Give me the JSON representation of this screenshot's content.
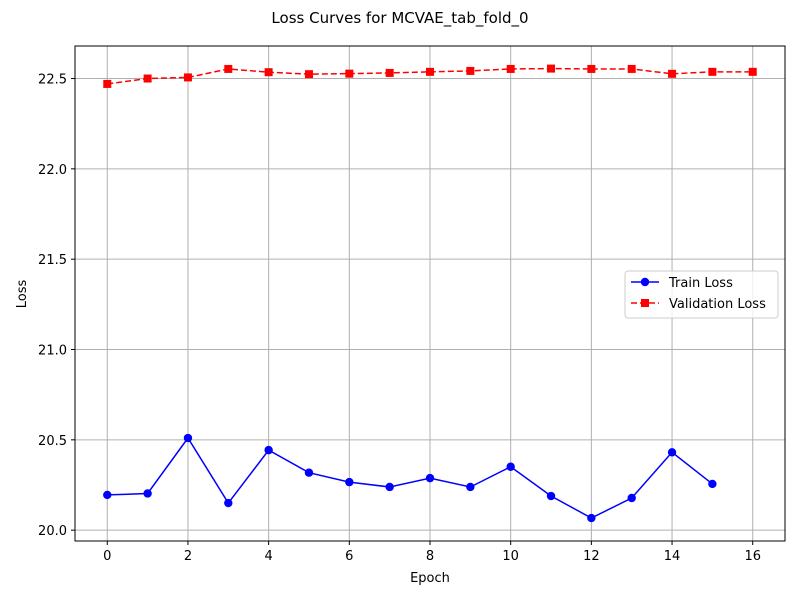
{
  "chart_data": {
    "type": "line",
    "title": "Loss Curves for MCVAE_tab_fold_0",
    "xlabel": "Epoch",
    "ylabel": "Loss",
    "xlim": [
      -0.8,
      16.8
    ],
    "ylim": [
      19.94,
      22.68
    ],
    "x_ticks": [
      0,
      2,
      4,
      6,
      8,
      10,
      12,
      14,
      16
    ],
    "y_ticks": [
      20.0,
      20.5,
      21.0,
      21.5,
      22.0,
      22.5
    ],
    "grid": true,
    "legend_position": "center-right",
    "series": [
      {
        "name": "Train Loss",
        "color": "#0000ff",
        "line_style": "solid",
        "marker": "circle",
        "x": [
          0,
          1,
          2,
          3,
          4,
          5,
          6,
          7,
          8,
          9,
          10,
          11,
          12,
          13,
          14,
          15
        ],
        "values": [
          20.195,
          20.203,
          20.51,
          20.15,
          20.443,
          20.318,
          20.266,
          20.239,
          20.288,
          20.239,
          20.351,
          20.189,
          20.067,
          20.178,
          20.431,
          20.256
        ]
      },
      {
        "name": "Validation Loss",
        "color": "#ff0000",
        "line_style": "dashed",
        "marker": "square",
        "x": [
          0,
          1,
          2,
          3,
          4,
          5,
          6,
          7,
          8,
          9,
          10,
          11,
          12,
          13,
          14,
          15,
          16
        ],
        "values": [
          22.47,
          22.5,
          22.506,
          22.553,
          22.535,
          22.524,
          22.527,
          22.531,
          22.537,
          22.542,
          22.553,
          22.555,
          22.553,
          22.553,
          22.526,
          22.537,
          22.537
        ]
      }
    ]
  }
}
